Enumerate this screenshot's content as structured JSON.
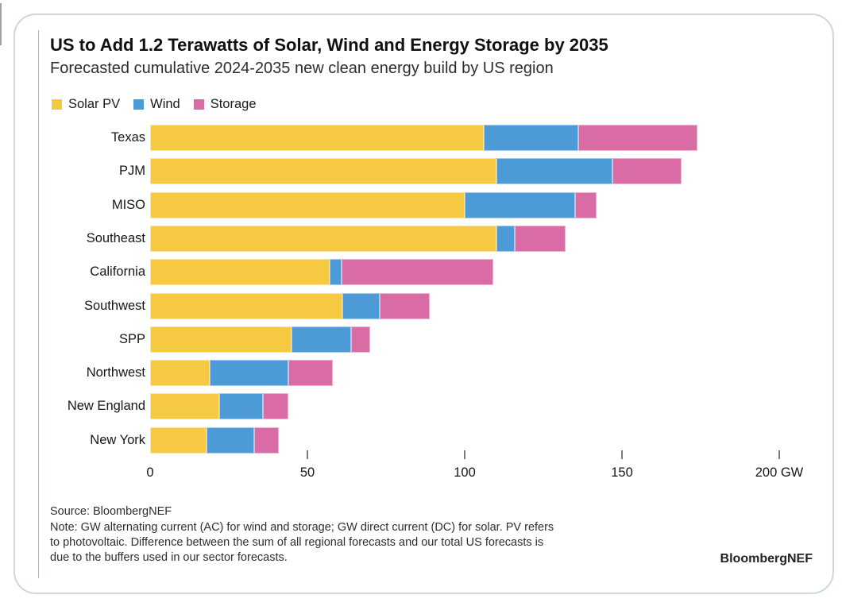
{
  "header": {
    "title": "US to Add 1.2 Terawatts of Solar, Wind and Energy Storage by 2035",
    "subtitle": "Forecasted cumulative 2024-2035 new clean energy build by US region"
  },
  "chart_data": {
    "type": "bar",
    "orientation": "horizontal",
    "stacked": true,
    "unit": "GW",
    "title": "US to Add 1.2 Terawatts of Solar, Wind and Energy Storage by 2035",
    "subtitle": "Forecasted cumulative 2024-2035 new clean energy build by US region",
    "categories": [
      "Texas",
      "PJM",
      "MISO",
      "Southeast",
      "California",
      "Southwest",
      "SPP",
      "Northwest",
      "New England",
      "New York"
    ],
    "series": [
      {
        "name": "Solar PV",
        "color": "#F5C942",
        "values": [
          106,
          110,
          100,
          110,
          57,
          61,
          45,
          19,
          22,
          18
        ]
      },
      {
        "name": "Wind",
        "color": "#4D9BD6",
        "values": [
          30,
          37,
          35,
          6,
          4,
          12,
          19,
          25,
          14,
          15
        ]
      },
      {
        "name": "Storage",
        "color": "#D96BA5",
        "values": [
          38,
          22,
          7,
          16,
          48,
          16,
          6,
          14,
          8,
          8
        ]
      }
    ],
    "x_axis": {
      "min": 0,
      "max": 200,
      "ticks": [
        0,
        50,
        100,
        150,
        200
      ],
      "tick_labels": [
        "0",
        "50",
        "100",
        "150",
        "200 GW"
      ]
    },
    "legend_position": "top-left",
    "grid": false
  },
  "footer": {
    "source": "Source: BloombergNEF",
    "note_lines": [
      "Note: GW alternating current (AC) for wind and storage; GW direct current (DC) for solar. PV refers",
      "to photovoltaic. Difference between the sum of all regional forecasts and our total US forecasts is",
      "due to the buffers used in our sector forecasts."
    ],
    "brand": "BloombergNEF"
  }
}
